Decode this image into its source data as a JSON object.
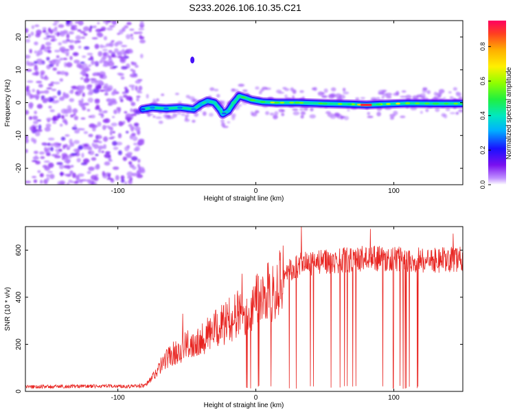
{
  "title": "S233.2026.106.10.35.C21",
  "colors": {
    "snr_line": "#e8231f",
    "axis": "#000000",
    "background": "#ffffff"
  },
  "chart_data": [
    {
      "type": "heatmap",
      "name": "spectrogram",
      "xlabel": "Height of straight line (km)",
      "ylabel": "Frequency (Hz)",
      "xlim": [
        -167,
        150
      ],
      "ylim": [
        -25,
        25
      ],
      "xticks": [
        -100,
        0,
        100
      ],
      "yticks": [
        -20,
        -10,
        0,
        10,
        20
      ],
      "colorbar": {
        "label": "Normalized spectral amplitude",
        "range": [
          0.0,
          0.95
        ],
        "ticks": [
          0.0,
          0.2,
          0.4,
          0.6,
          0.8
        ],
        "tick_labels": [
          "0.0",
          "0.2",
          "0.4",
          "0.6",
          "0.8"
        ],
        "colormap": "rainbow (purple to red)"
      },
      "noise_region": {
        "x_range": [
          -167,
          -82
        ],
        "freq_range": [
          -25,
          25
        ],
        "amplitude": 0.1
      },
      "signal_track": [
        {
          "x": -82,
          "f": -2.0,
          "amp": 0.25
        },
        {
          "x": -75,
          "f": -1.5,
          "amp": 0.3
        },
        {
          "x": -65,
          "f": -1.8,
          "amp": 0.3
        },
        {
          "x": -55,
          "f": -1.5,
          "amp": 0.3
        },
        {
          "x": -45,
          "f": -2.0,
          "amp": 0.3
        },
        {
          "x": -40,
          "f": -0.5,
          "amp": 0.35
        },
        {
          "x": -35,
          "f": 0.5,
          "amp": 0.35
        },
        {
          "x": -30,
          "f": 0.0,
          "amp": 0.45
        },
        {
          "x": -26,
          "f": -2.0,
          "amp": 0.4
        },
        {
          "x": -24,
          "f": -3.5,
          "amp": 0.35
        },
        {
          "x": -20,
          "f": -2.5,
          "amp": 0.35
        },
        {
          "x": -16,
          "f": 0.0,
          "amp": 0.4
        },
        {
          "x": -12,
          "f": 2.0,
          "amp": 0.45
        },
        {
          "x": -8,
          "f": 1.5,
          "amp": 0.45
        },
        {
          "x": -3,
          "f": 0.8,
          "amp": 0.5
        },
        {
          "x": 5,
          "f": 0.2,
          "amp": 0.55
        },
        {
          "x": 15,
          "f": 0.0,
          "amp": 0.55
        },
        {
          "x": 30,
          "f": 0.0,
          "amp": 0.55
        },
        {
          "x": 50,
          "f": -0.3,
          "amp": 0.5
        },
        {
          "x": 70,
          "f": -0.5,
          "amp": 0.6
        },
        {
          "x": 80,
          "f": -0.7,
          "amp": 0.9
        },
        {
          "x": 90,
          "f": -0.5,
          "amp": 0.6
        },
        {
          "x": 110,
          "f": -0.2,
          "amp": 0.55
        },
        {
          "x": 130,
          "f": -0.3,
          "amp": 0.5
        },
        {
          "x": 150,
          "f": -0.3,
          "amp": 0.5
        }
      ],
      "stray_feature": {
        "x": -46,
        "f": 13,
        "amp": 0.35
      }
    },
    {
      "type": "line",
      "name": "snr",
      "xlabel": "Height of straight line (km)",
      "ylabel": "SNR (10 * v/v)",
      "xlim": [
        -167,
        150
      ],
      "ylim": [
        0,
        700
      ],
      "xticks": [
        -100,
        0,
        100
      ],
      "yticks": [
        0,
        200,
        400,
        600
      ],
      "envelope_description": "SNR rises from ~20 (noise) to ~600 at the top of the profile",
      "x": [
        -167,
        -150,
        -130,
        -110,
        -90,
        -80,
        -75,
        -70,
        -65,
        -60,
        -55,
        -50,
        -45,
        -40,
        -35,
        -30,
        -25,
        -20,
        -15,
        -10,
        -5,
        0,
        5,
        10,
        15,
        20,
        25,
        30,
        35,
        40,
        50,
        60,
        70,
        80,
        90,
        100,
        110,
        120,
        130,
        140,
        150
      ],
      "values": [
        20,
        20,
        22,
        22,
        22,
        25,
        60,
        100,
        140,
        160,
        175,
        195,
        210,
        225,
        240,
        260,
        280,
        300,
        320,
        340,
        360,
        380,
        400,
        420,
        460,
        490,
        515,
        530,
        540,
        545,
        550,
        555,
        560,
        565,
        565,
        560,
        560,
        560,
        555,
        560,
        560
      ],
      "dropouts_x_range": [
        -10,
        118
      ],
      "peaks": [
        {
          "x": 33,
          "y": 700
        },
        {
          "x": 83,
          "y": 690
        },
        {
          "x": 143,
          "y": 670
        },
        {
          "x": -10,
          "y": 500
        },
        {
          "x": -53,
          "y": 330
        }
      ]
    }
  ]
}
